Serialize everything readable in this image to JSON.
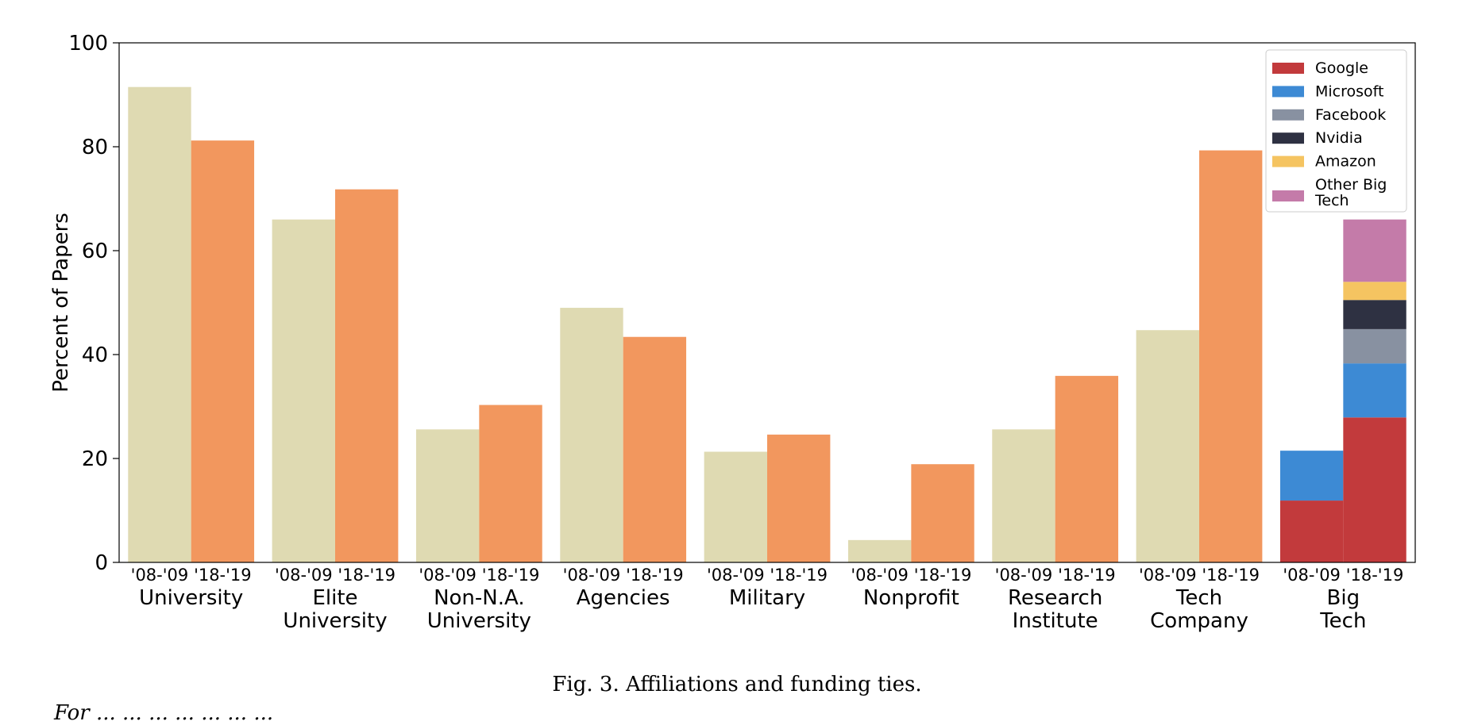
{
  "caption": "Fig. 3.  Affiliations and funding ties.",
  "caption_cutoff": "For ... ... ... ... ... ... ...",
  "chart_data": {
    "type": "bar",
    "ylabel": "Percent of Papers",
    "ylim": [
      0,
      100
    ],
    "yticks": [
      0,
      20,
      40,
      60,
      80,
      100
    ],
    "periods": [
      "'08-'09",
      "'18-'19"
    ],
    "period_colors": [
      "#dfdab2",
      "#f2975e"
    ],
    "categories": [
      {
        "label": "University",
        "values": [
          91.5,
          81.2
        ]
      },
      {
        "label": "Elite University",
        "lines": [
          "Elite",
          "University"
        ],
        "values": [
          66.0,
          71.8
        ]
      },
      {
        "label": "Non-N.A. University",
        "lines": [
          "Non-N.A.",
          "University"
        ],
        "values": [
          25.6,
          30.3
        ]
      },
      {
        "label": "Agencies",
        "values": [
          49.0,
          43.4
        ]
      },
      {
        "label": "Military",
        "values": [
          21.3,
          24.6
        ]
      },
      {
        "label": "Nonprofit",
        "values": [
          4.3,
          18.9
        ]
      },
      {
        "label": "Research Institute",
        "lines": [
          "Research",
          "Institute"
        ],
        "values": [
          25.6,
          35.9
        ]
      },
      {
        "label": "Tech Company",
        "lines": [
          "Tech",
          "Company"
        ],
        "values": [
          44.7,
          79.3
        ]
      }
    ],
    "stacked_category": {
      "label": "Big Tech",
      "lines": [
        "Big",
        "Tech"
      ],
      "series": [
        {
          "name": "Google",
          "color": "#c23a3c",
          "values": [
            11.9,
            27.9
          ]
        },
        {
          "name": "Microsoft",
          "color": "#3d8ad4",
          "values": [
            9.6,
            10.4
          ]
        },
        {
          "name": "Facebook",
          "color": "#8891a1",
          "values": [
            0,
            6.6
          ]
        },
        {
          "name": "Nvidia",
          "color": "#2e3142",
          "values": [
            0,
            5.6
          ]
        },
        {
          "name": "Amazon",
          "color": "#f5c461",
          "values": [
            0,
            3.5
          ]
        },
        {
          "name": "Other Big Tech",
          "lines": [
            "Other Big",
            "Tech"
          ],
          "color": "#c47ba9",
          "values": [
            0,
            12.0
          ]
        }
      ]
    },
    "legend_position": "top-right",
    "grid": false
  }
}
